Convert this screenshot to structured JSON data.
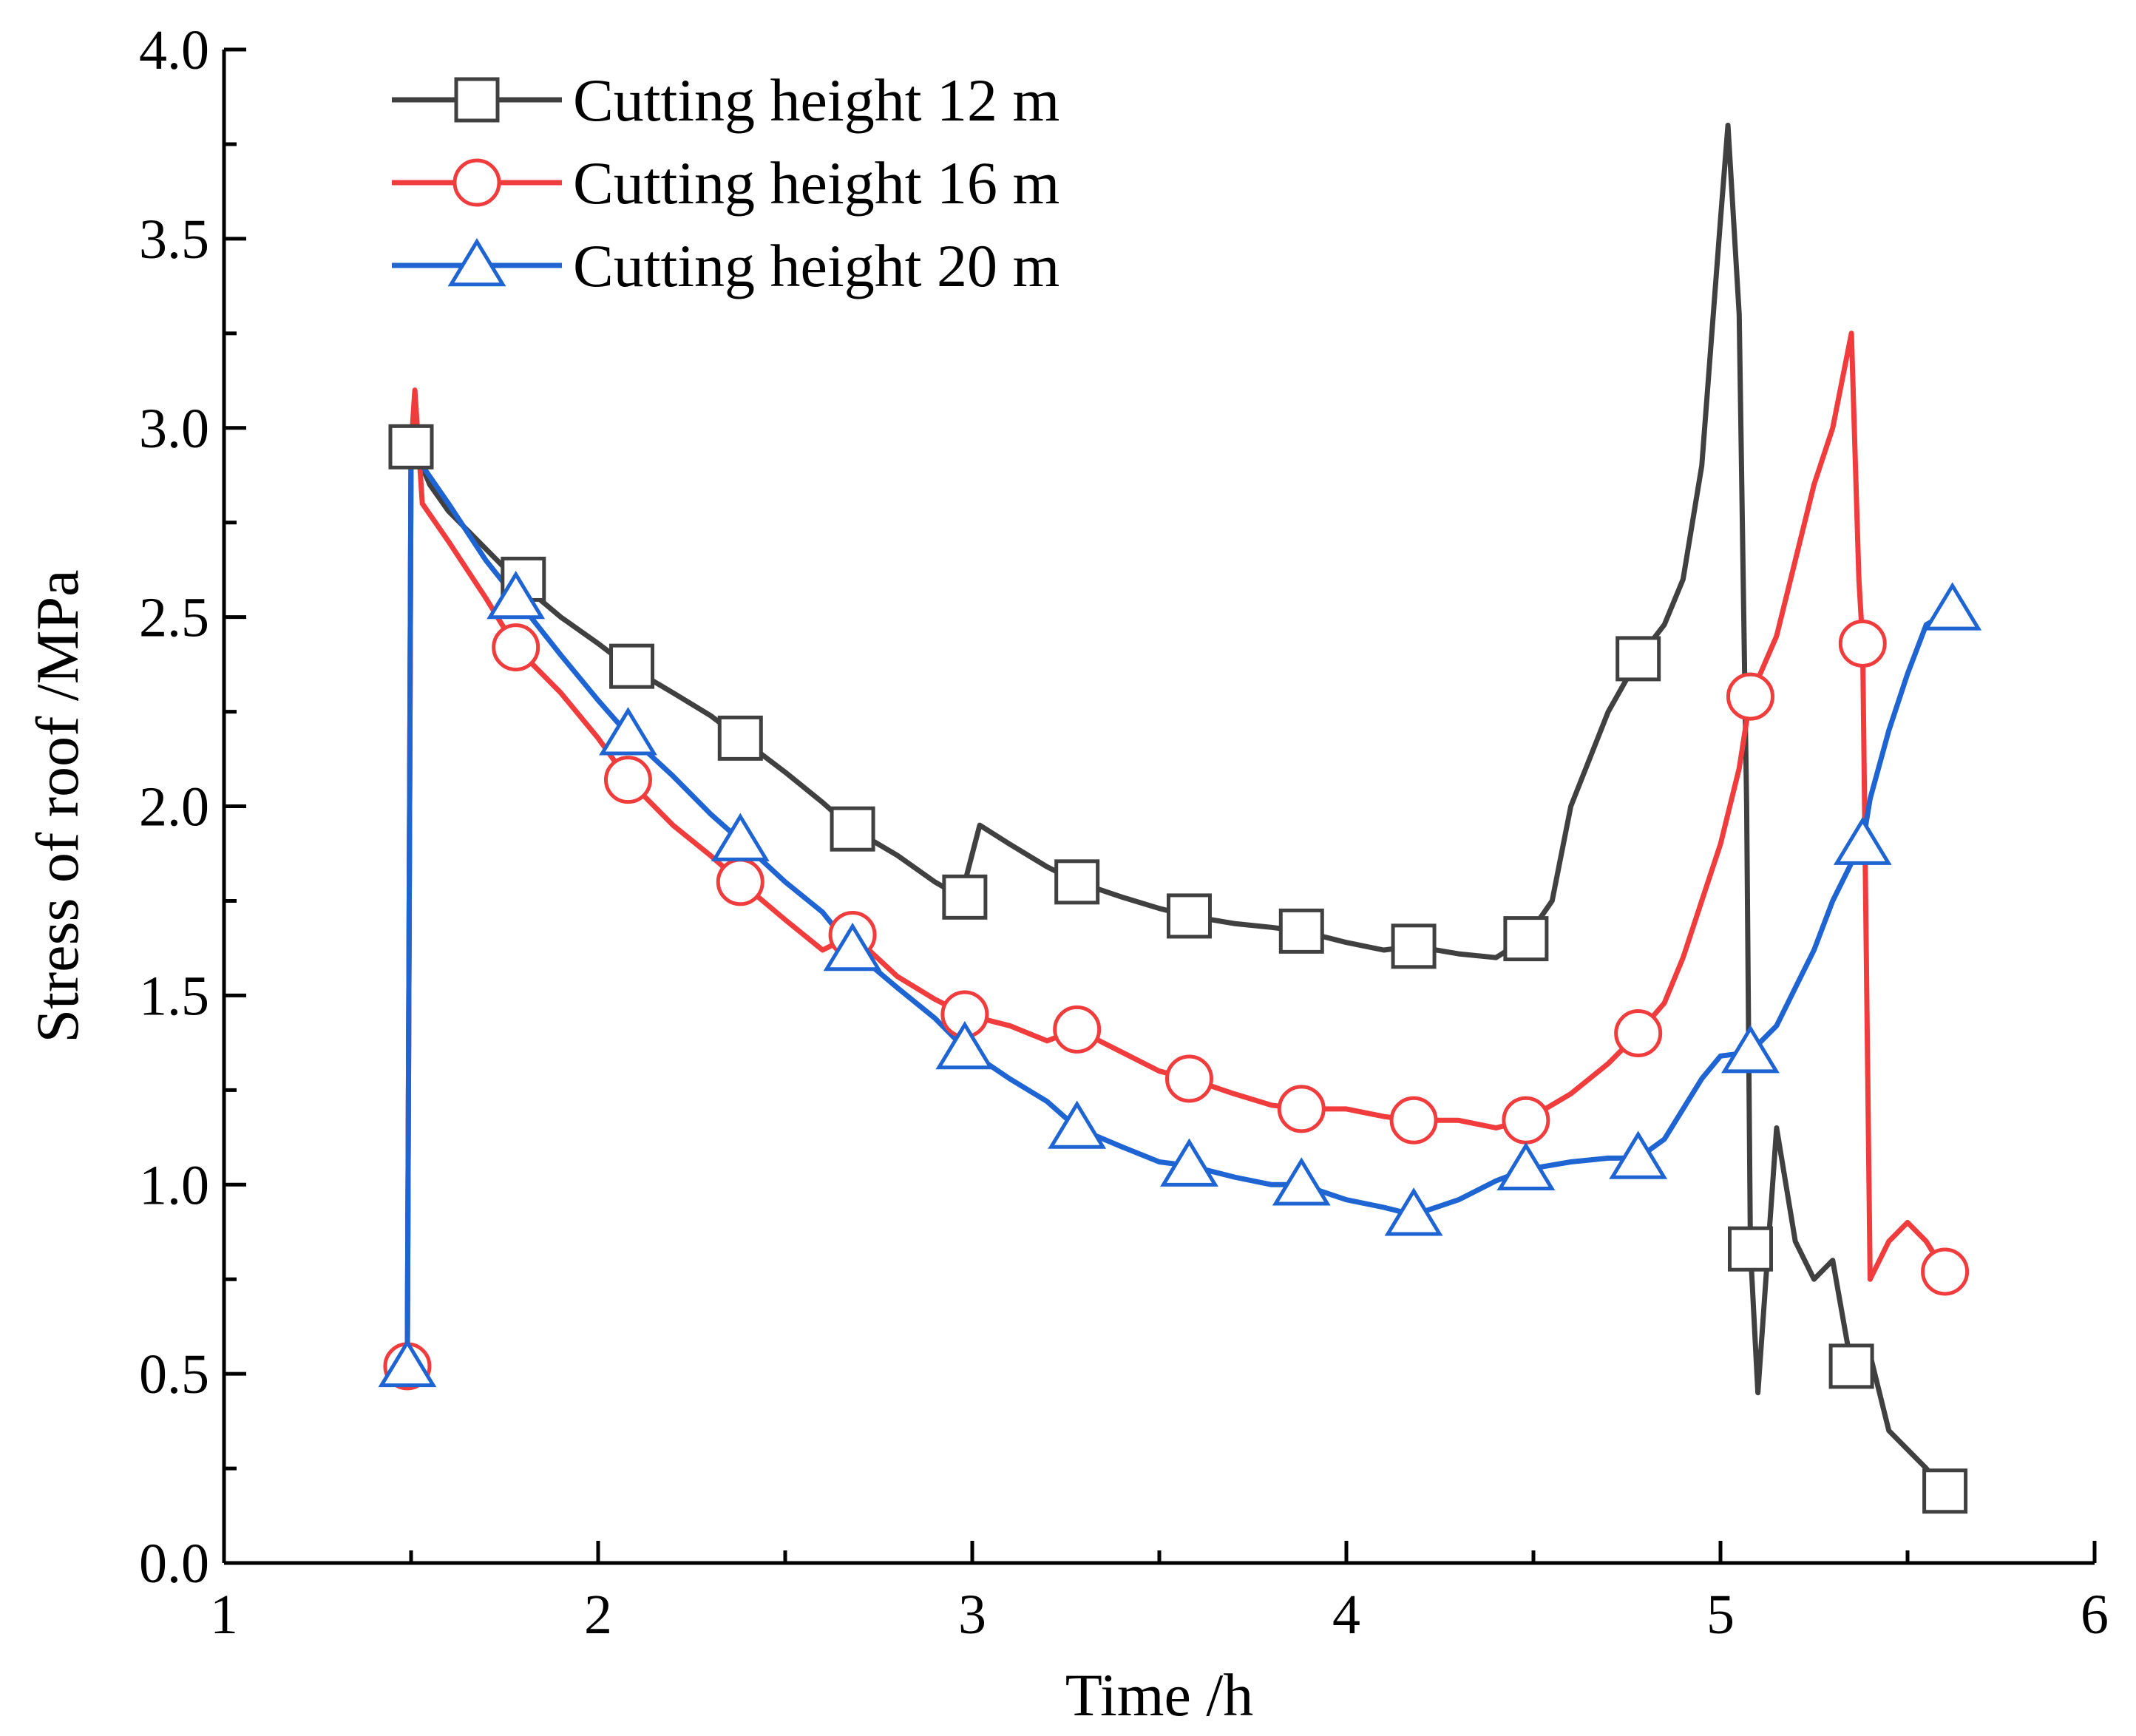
{
  "chart_data": {
    "type": "line",
    "title": "",
    "xlabel": "Time /h",
    "ylabel": "Stress  of  roof  /MPa",
    "xlim": [
      1,
      6
    ],
    "ylim": [
      0.0,
      4.0
    ],
    "x_ticks": [
      "1",
      "2",
      "3",
      "4",
      "5",
      "6"
    ],
    "y_ticks": [
      "0.0",
      "0.5",
      "1.0",
      "1.5",
      "2.0",
      "2.5",
      "3.0",
      "3.5",
      "4.0"
    ],
    "legend_position": "top-left",
    "series": [
      {
        "name": "Cutting height 12 m",
        "color": "#404040",
        "marker": "square",
        "x": [
          1.49,
          1.5,
          1.52,
          1.55,
          1.6,
          1.7,
          1.78,
          1.9,
          2.0,
          2.08,
          2.2,
          2.3,
          2.38,
          2.5,
          2.6,
          2.68,
          2.8,
          2.9,
          2.97,
          3.02,
          3.1,
          3.2,
          3.28,
          3.4,
          3.5,
          3.58,
          3.7,
          3.8,
          3.88,
          4.0,
          4.1,
          4.18,
          4.3,
          4.4,
          4.48,
          4.55,
          4.6,
          4.7,
          4.78,
          4.85,
          4.9,
          4.95,
          5.0,
          5.02,
          5.05,
          5.07,
          5.08,
          5.1,
          5.15,
          5.2,
          5.25,
          5.3,
          5.35,
          5.4,
          5.45,
          5.5,
          5.55,
          5.6
        ],
        "y": [
          0.52,
          2.95,
          2.92,
          2.85,
          2.78,
          2.68,
          2.6,
          2.5,
          2.43,
          2.37,
          2.3,
          2.24,
          2.18,
          2.09,
          2.01,
          1.94,
          1.87,
          1.8,
          1.76,
          1.95,
          1.9,
          1.84,
          1.8,
          1.76,
          1.73,
          1.71,
          1.69,
          1.68,
          1.67,
          1.64,
          1.62,
          1.63,
          1.61,
          1.6,
          1.65,
          1.75,
          2.0,
          2.25,
          2.39,
          2.48,
          2.6,
          2.9,
          3.55,
          3.8,
          3.3,
          2.0,
          0.83,
          0.45,
          1.15,
          0.85,
          0.75,
          0.8,
          0.52,
          0.55,
          0.35,
          0.3,
          0.25,
          0.19
        ]
      },
      {
        "name": "Cutting height 16 m",
        "color": "#f03c3c",
        "marker": "circle",
        "x": [
          1.49,
          1.5,
          1.51,
          1.53,
          1.6,
          1.7,
          1.78,
          1.9,
          2.0,
          2.08,
          2.2,
          2.3,
          2.38,
          2.5,
          2.6,
          2.68,
          2.8,
          2.9,
          2.98,
          3.1,
          3.2,
          3.28,
          3.4,
          3.5,
          3.58,
          3.7,
          3.8,
          3.88,
          4.0,
          4.1,
          4.18,
          4.3,
          4.4,
          4.48,
          4.6,
          4.7,
          4.78,
          4.85,
          4.9,
          4.95,
          5.0,
          5.05,
          5.08,
          5.15,
          5.2,
          5.25,
          5.3,
          5.35,
          5.37,
          5.38,
          5.4,
          5.45,
          5.5,
          5.55,
          5.6
        ],
        "y": [
          0.52,
          2.95,
          3.1,
          2.8,
          2.7,
          2.55,
          2.42,
          2.3,
          2.18,
          2.07,
          1.95,
          1.87,
          1.8,
          1.7,
          1.62,
          1.66,
          1.55,
          1.49,
          1.45,
          1.42,
          1.38,
          1.41,
          1.35,
          1.3,
          1.28,
          1.24,
          1.21,
          1.2,
          1.2,
          1.18,
          1.17,
          1.17,
          1.15,
          1.17,
          1.24,
          1.32,
          1.4,
          1.48,
          1.6,
          1.75,
          1.9,
          2.1,
          2.29,
          2.45,
          2.65,
          2.85,
          3.0,
          3.25,
          2.6,
          2.43,
          0.75,
          0.85,
          0.9,
          0.85,
          0.77
        ]
      },
      {
        "name": "Cutting height 20 m",
        "color": "#1e64d2",
        "marker": "triangle",
        "x": [
          1.49,
          1.5,
          1.51,
          1.53,
          1.6,
          1.7,
          1.78,
          1.9,
          2.0,
          2.08,
          2.2,
          2.3,
          2.38,
          2.5,
          2.6,
          2.68,
          2.8,
          2.9,
          2.98,
          3.1,
          3.2,
          3.28,
          3.4,
          3.5,
          3.58,
          3.7,
          3.8,
          3.88,
          4.0,
          4.1,
          4.18,
          4.3,
          4.4,
          4.48,
          4.6,
          4.7,
          4.78,
          4.85,
          4.9,
          4.95,
          5.0,
          5.08,
          5.15,
          5.2,
          5.25,
          5.3,
          5.35,
          5.38,
          5.4,
          5.45,
          5.5,
          5.55,
          5.62
        ],
        "y": [
          0.52,
          2.98,
          2.93,
          2.9,
          2.8,
          2.65,
          2.55,
          2.4,
          2.28,
          2.19,
          2.08,
          1.98,
          1.91,
          1.8,
          1.72,
          1.62,
          1.52,
          1.44,
          1.36,
          1.28,
          1.22,
          1.15,
          1.1,
          1.06,
          1.05,
          1.02,
          1.0,
          1.0,
          0.96,
          0.94,
          0.92,
          0.96,
          1.01,
          1.04,
          1.06,
          1.07,
          1.07,
          1.12,
          1.2,
          1.28,
          1.34,
          1.35,
          1.42,
          1.52,
          1.62,
          1.75,
          1.85,
          1.9,
          2.02,
          2.2,
          2.35,
          2.48,
          2.52
        ]
      }
    ]
  }
}
